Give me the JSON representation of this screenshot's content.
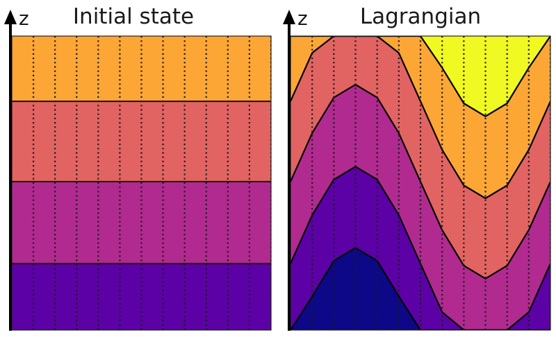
{
  "panels": [
    {
      "title": "Initial state",
      "axis_label": "z",
      "type": "flat"
    },
    {
      "title": "Lagrangian",
      "axis_label": "z",
      "type": "wavy"
    }
  ],
  "field": {
    "columns": 12,
    "levels": [
      -0.05,
      0.226,
      0.505,
      0.778,
      1.057
    ],
    "initial_boundaries": [
      0.226,
      0.505,
      0.778
    ],
    "wave_amplitude": 0.33,
    "wave_period_columns": 12,
    "wave_peak_column": 3,
    "band_colors": [
      "#0d0887",
      "#5c01a6",
      "#b12a90",
      "#e16462",
      "#fca636",
      "#f0f921"
    ],
    "initial_band_colors": [
      "#5c01a6",
      "#b12a90",
      "#e16462",
      "#fca636"
    ]
  }
}
